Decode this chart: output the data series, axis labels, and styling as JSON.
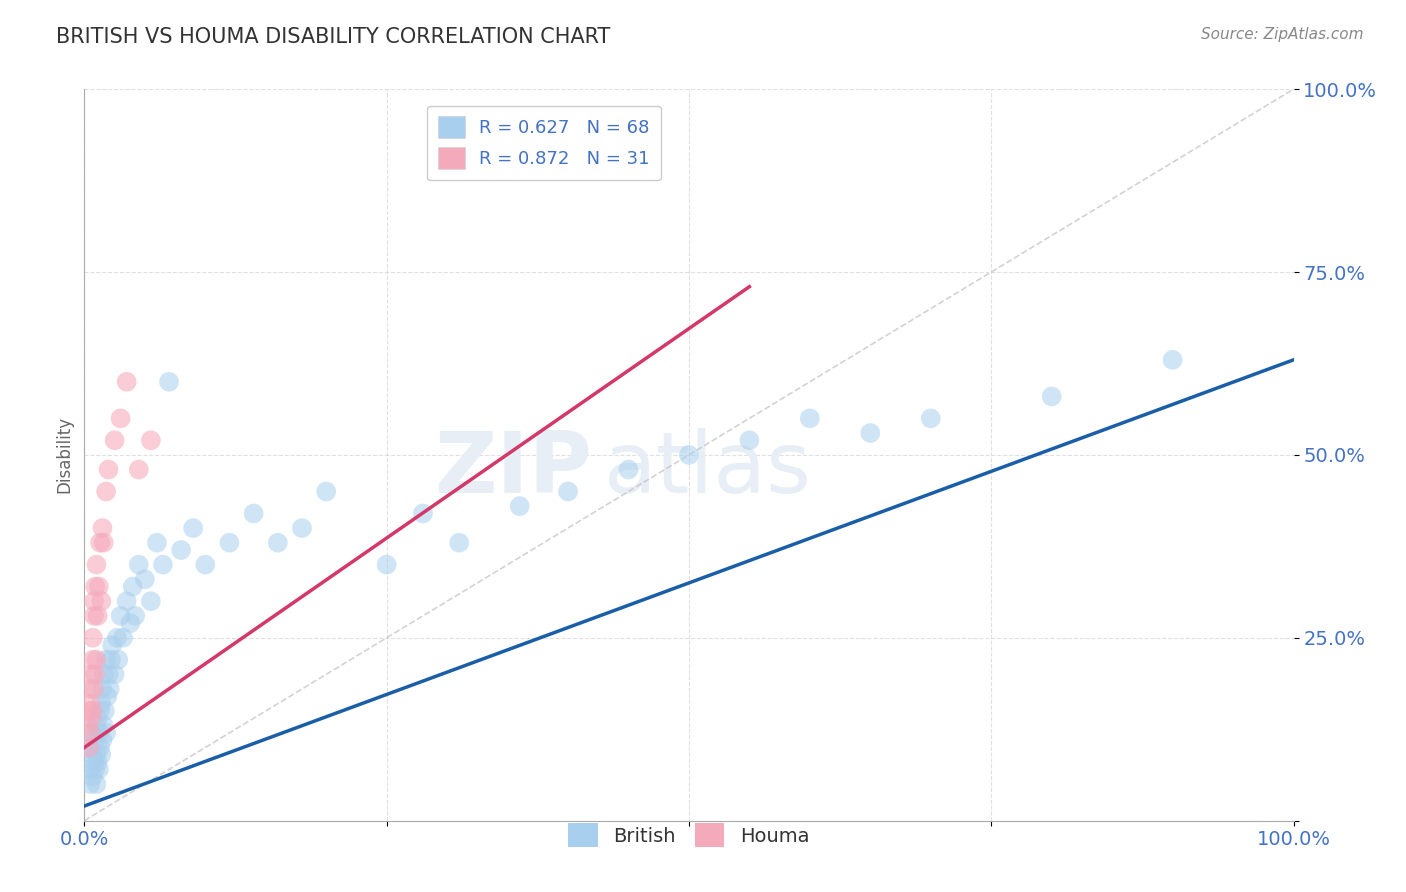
{
  "title": "BRITISH VS HOUMA DISABILITY CORRELATION CHART",
  "source_text": "Source: ZipAtlas.com",
  "ylabel": "Disability",
  "xlim": [
    0,
    1.0
  ],
  "ylim": [
    0,
    1.0
  ],
  "xticks": [
    0.0,
    0.25,
    0.5,
    0.75,
    1.0
  ],
  "yticks": [
    0.0,
    0.25,
    0.5,
    0.75,
    1.0
  ],
  "legend_r_british": "R = 0.627",
  "legend_n_british": "N = 68",
  "legend_r_houma": "R = 0.872",
  "legend_n_houma": "N = 31",
  "british_color": "#A8CFED",
  "houma_color": "#F5AABC",
  "british_line_color": "#1B5EA8",
  "houma_line_color": "#D43868",
  "ref_line_color": "#C0C0C0",
  "grid_color": "#CCCCCC",
  "title_color": "#333333",
  "axis_label_color": "#666666",
  "tick_label_color": "#4472C4",
  "watermark_color": "#E8EEF5",
  "british_scatter_x": [
    0.005,
    0.005,
    0.005,
    0.007,
    0.007,
    0.008,
    0.008,
    0.009,
    0.009,
    0.01,
    0.01,
    0.01,
    0.011,
    0.011,
    0.012,
    0.012,
    0.013,
    0.013,
    0.014,
    0.014,
    0.015,
    0.015,
    0.016,
    0.016,
    0.017,
    0.018,
    0.018,
    0.019,
    0.02,
    0.021,
    0.022,
    0.023,
    0.025,
    0.027,
    0.028,
    0.03,
    0.032,
    0.035,
    0.038,
    0.04,
    0.042,
    0.045,
    0.05,
    0.055,
    0.06,
    0.065,
    0.07,
    0.08,
    0.09,
    0.1,
    0.12,
    0.14,
    0.16,
    0.18,
    0.2,
    0.25,
    0.28,
    0.31,
    0.36,
    0.4,
    0.45,
    0.5,
    0.55,
    0.6,
    0.65,
    0.7,
    0.8,
    0.9
  ],
  "british_scatter_y": [
    0.05,
    0.07,
    0.1,
    0.06,
    0.09,
    0.08,
    0.12,
    0.07,
    0.11,
    0.05,
    0.09,
    0.13,
    0.08,
    0.14,
    0.07,
    0.12,
    0.1,
    0.15,
    0.09,
    0.16,
    0.11,
    0.18,
    0.13,
    0.2,
    0.15,
    0.12,
    0.22,
    0.17,
    0.2,
    0.18,
    0.22,
    0.24,
    0.2,
    0.25,
    0.22,
    0.28,
    0.25,
    0.3,
    0.27,
    0.32,
    0.28,
    0.35,
    0.33,
    0.3,
    0.38,
    0.35,
    0.6,
    0.37,
    0.4,
    0.35,
    0.38,
    0.42,
    0.38,
    0.4,
    0.45,
    0.35,
    0.42,
    0.38,
    0.43,
    0.45,
    0.48,
    0.5,
    0.52,
    0.55,
    0.53,
    0.55,
    0.58,
    0.63
  ],
  "houma_scatter_x": [
    0.003,
    0.004,
    0.004,
    0.005,
    0.005,
    0.005,
    0.006,
    0.006,
    0.007,
    0.007,
    0.007,
    0.008,
    0.008,
    0.008,
    0.009,
    0.009,
    0.01,
    0.01,
    0.011,
    0.012,
    0.013,
    0.014,
    0.015,
    0.016,
    0.018,
    0.02,
    0.025,
    0.03,
    0.035,
    0.045,
    0.055
  ],
  "houma_scatter_y": [
    0.13,
    0.1,
    0.15,
    0.12,
    0.16,
    0.18,
    0.14,
    0.2,
    0.15,
    0.22,
    0.25,
    0.18,
    0.28,
    0.3,
    0.2,
    0.32,
    0.22,
    0.35,
    0.28,
    0.32,
    0.38,
    0.3,
    0.4,
    0.38,
    0.45,
    0.48,
    0.52,
    0.55,
    0.6,
    0.48,
    0.52
  ],
  "british_line_x0": 0.0,
  "british_line_x1": 1.0,
  "british_line_y0": 0.02,
  "british_line_y1": 0.63,
  "houma_line_x0": 0.0,
  "houma_line_x1": 0.55,
  "houma_line_y0": 0.1,
  "houma_line_y1": 0.73,
  "figsize": [
    14.06,
    8.92
  ],
  "dpi": 100
}
